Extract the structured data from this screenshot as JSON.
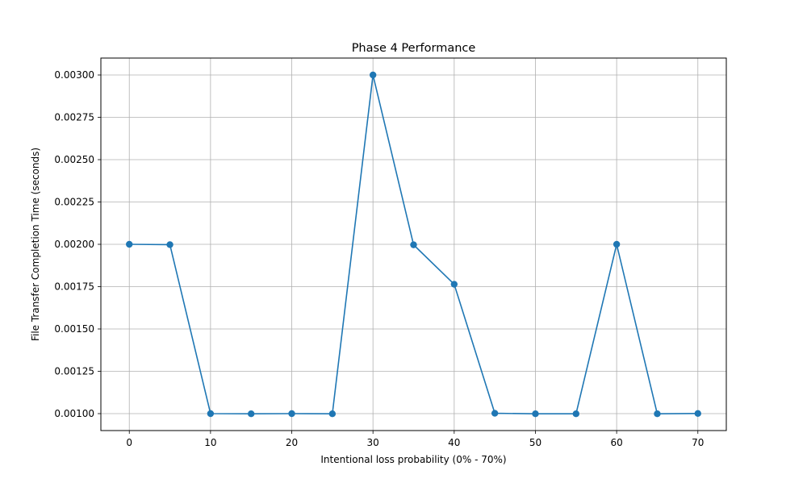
{
  "chart_data": {
    "type": "line",
    "title": "Phase 4 Performance",
    "xlabel": "Intentional loss probability (0% - 70%)",
    "ylabel": "File Transfer Completion Time (seconds)",
    "x": [
      0,
      5,
      10,
      15,
      20,
      25,
      30,
      35,
      40,
      45,
      50,
      55,
      60,
      65,
      70
    ],
    "series": [
      {
        "name": "",
        "values": [
          0.002,
          0.001998,
          0.001,
          0.000999,
          0.001,
          0.000999,
          0.003,
          0.001997,
          0.001764,
          0.001002,
          0.000999,
          0.000999,
          0.002,
          0.000999,
          0.001001
        ],
        "color": "#1f77b4",
        "marker": "circle"
      }
    ],
    "xlim": [
      -3.5,
      73.5
    ],
    "ylim": [
      0.0009,
      0.0031
    ],
    "xticks": [
      0,
      10,
      20,
      30,
      40,
      50,
      60,
      70
    ],
    "xtick_labels": [
      "0",
      "10",
      "20",
      "30",
      "40",
      "50",
      "60",
      "70"
    ],
    "yticks": [
      0.001,
      0.00125,
      0.0015,
      0.00175,
      0.002,
      0.00225,
      0.0025,
      0.00275,
      0.003
    ],
    "ytick_labels": [
      "0.00100",
      "0.00125",
      "0.00150",
      "0.00175",
      "0.00200",
      "0.00225",
      "0.00250",
      "0.00275",
      "0.00300"
    ],
    "grid": true,
    "legend": false
  }
}
